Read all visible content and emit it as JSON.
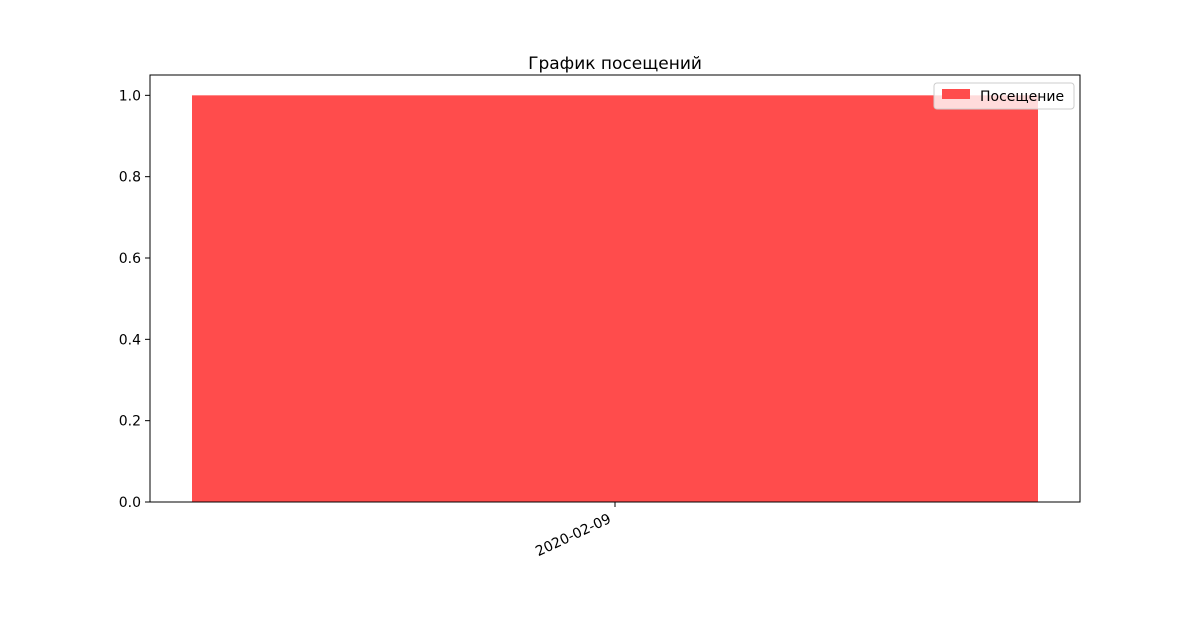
{
  "chart_data": {
    "type": "bar",
    "title": "График посещений",
    "xlabel": "",
    "ylabel": "",
    "categories": [
      "2020-02-09"
    ],
    "series": [
      {
        "name": "Посещение",
        "values": [
          1.0
        ]
      }
    ],
    "ylim": [
      0,
      1.05
    ],
    "yticks": [
      "0.0",
      "0.2",
      "0.4",
      "0.6",
      "0.8",
      "1.0"
    ],
    "bar_color": "#ff4c4c",
    "grid": false,
    "legend_position": "top-right"
  }
}
